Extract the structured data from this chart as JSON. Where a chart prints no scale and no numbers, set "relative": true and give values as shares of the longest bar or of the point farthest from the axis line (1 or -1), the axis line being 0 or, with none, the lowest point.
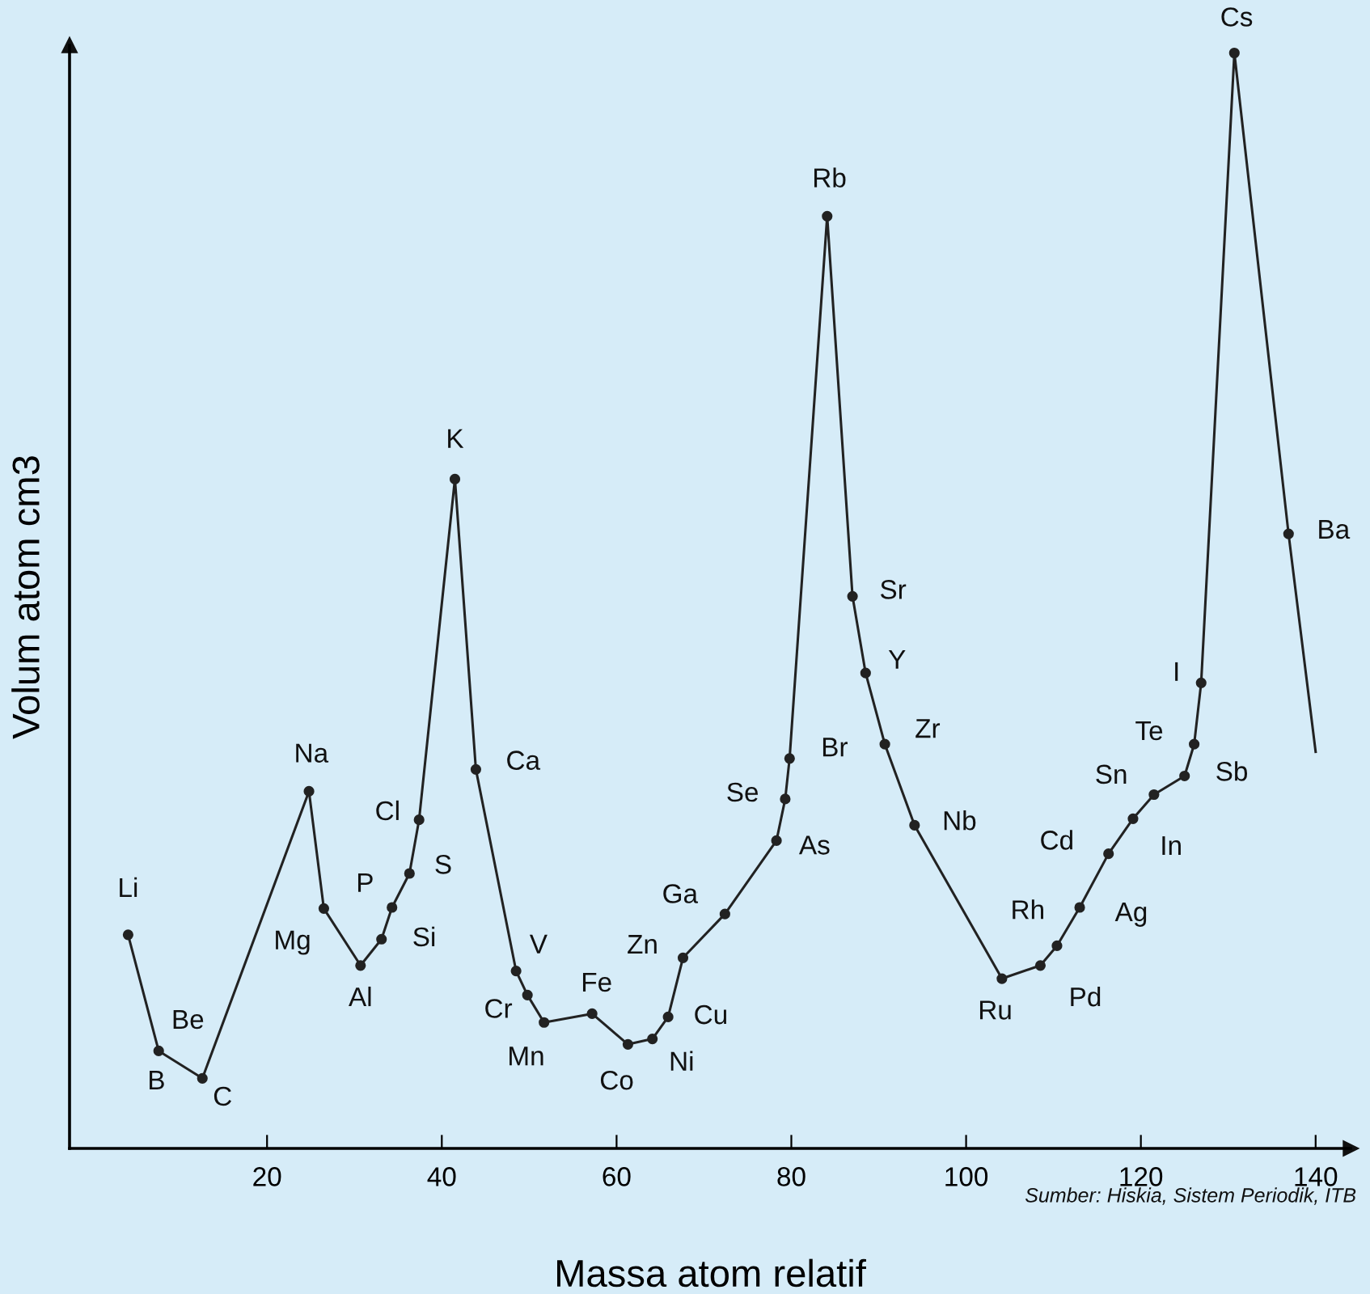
{
  "chart_data": {
    "type": "line",
    "relative": true,
    "xlabel": "Massa atom relatif",
    "ylabel": "Volum atom cm3",
    "xlim": [
      -2.6,
      144
    ],
    "xticks": [
      20,
      40,
      60,
      80,
      100,
      120,
      140
    ],
    "grid": false,
    "legend": false,
    "series": [
      {
        "color": "#222222",
        "marker": "none",
        "x": [
          4.1,
          7.6,
          12.6,
          24.8,
          26.5,
          30.7,
          33.1,
          34.3,
          36.3,
          37.4,
          41.5,
          43.9,
          48.5,
          49.8,
          51.7,
          57.2,
          61.3,
          64.1,
          65.9,
          67.6,
          72.4,
          78.3,
          79.3,
          79.8,
          84.1,
          87.0,
          88.5,
          90.7,
          94.1,
          104.1,
          108.5,
          110.4,
          113.0,
          116.3,
          119.1,
          121.5,
          125.0,
          126.1,
          126.9,
          130.7,
          136.9,
          140.0
        ],
        "values": [
          0.195,
          0.089,
          0.064,
          0.326,
          0.219,
          0.167,
          0.191,
          0.22,
          0.251,
          0.3,
          0.611,
          0.346,
          0.162,
          0.14,
          0.115,
          0.123,
          0.095,
          0.1,
          0.12,
          0.174,
          0.214,
          0.281,
          0.319,
          0.356,
          0.851,
          0.504,
          0.434,
          0.369,
          0.295,
          0.155,
          0.167,
          0.185,
          0.22,
          0.269,
          0.301,
          0.323,
          0.34,
          0.369,
          0.425,
          1.0,
          0.561,
          0.362
        ]
      },
      {
        "type": "scatter",
        "color": "#222222",
        "marker": "circle",
        "x": [
          4.1,
          7.6,
          12.6,
          24.8,
          26.5,
          30.7,
          33.1,
          34.3,
          36.3,
          37.4,
          41.5,
          43.9,
          48.5,
          49.8,
          51.7,
          57.2,
          61.3,
          64.1,
          65.9,
          67.6,
          72.4,
          78.3,
          79.3,
          79.8,
          84.1,
          87.0,
          88.5,
          90.7,
          94.1,
          104.1,
          108.5,
          110.4,
          113.0,
          116.3,
          119.1,
          121.5,
          125.0,
          126.1,
          126.9,
          130.7,
          136.9
        ],
        "values": [
          0.195,
          0.089,
          0.064,
          0.326,
          0.219,
          0.167,
          0.191,
          0.22,
          0.251,
          0.3,
          0.611,
          0.346,
          0.162,
          0.14,
          0.115,
          0.123,
          0.095,
          0.1,
          0.12,
          0.174,
          0.214,
          0.281,
          0.319,
          0.356,
          0.851,
          0.504,
          0.434,
          0.369,
          0.295,
          0.155,
          0.167,
          0.185,
          0.22,
          0.269,
          0.301,
          0.323,
          0.34,
          0.369,
          0.425,
          1.0,
          0.561
        ]
      }
    ],
    "annotations": [
      {
        "text": "Li",
        "x": 4.1,
        "y": 0.195
      },
      {
        "text": "Be",
        "x": 7.6,
        "y": 0.089
      },
      {
        "text": "B",
        "x": 7.6,
        "y": 0.089
      },
      {
        "text": "C",
        "x": 12.6,
        "y": 0.064
      },
      {
        "text": "Na",
        "x": 24.8,
        "y": 0.326
      },
      {
        "text": "Mg",
        "x": 26.5,
        "y": 0.219
      },
      {
        "text": "Al",
        "x": 30.7,
        "y": 0.167
      },
      {
        "text": "Si",
        "x": 33.1,
        "y": 0.191
      },
      {
        "text": "P",
        "x": 34.3,
        "y": 0.22
      },
      {
        "text": "S",
        "x": 36.3,
        "y": 0.251
      },
      {
        "text": "Cl",
        "x": 37.4,
        "y": 0.3
      },
      {
        "text": "K",
        "x": 41.5,
        "y": 0.611
      },
      {
        "text": "Ca",
        "x": 43.9,
        "y": 0.346
      },
      {
        "text": "V",
        "x": 48.5,
        "y": 0.162
      },
      {
        "text": "Cr",
        "x": 49.8,
        "y": 0.14
      },
      {
        "text": "Mn",
        "x": 51.7,
        "y": 0.115
      },
      {
        "text": "Fe",
        "x": 57.2,
        "y": 0.123
      },
      {
        "text": "Co",
        "x": 61.3,
        "y": 0.095
      },
      {
        "text": "Ni",
        "x": 64.1,
        "y": 0.1
      },
      {
        "text": "Cu",
        "x": 65.9,
        "y": 0.12
      },
      {
        "text": "Zn",
        "x": 67.6,
        "y": 0.174
      },
      {
        "text": "Ga",
        "x": 72.4,
        "y": 0.214
      },
      {
        "text": "As",
        "x": 78.3,
        "y": 0.281
      },
      {
        "text": "Se",
        "x": 79.3,
        "y": 0.319
      },
      {
        "text": "Br",
        "x": 79.8,
        "y": 0.356
      },
      {
        "text": "Rb",
        "x": 84.1,
        "y": 0.851
      },
      {
        "text": "Sr",
        "x": 87.0,
        "y": 0.504
      },
      {
        "text": "Y",
        "x": 88.5,
        "y": 0.434
      },
      {
        "text": "Zr",
        "x": 90.7,
        "y": 0.369
      },
      {
        "text": "Nb",
        "x": 94.1,
        "y": 0.295
      },
      {
        "text": "Ru",
        "x": 104.1,
        "y": 0.155
      },
      {
        "text": "Pd",
        "x": 108.5,
        "y": 0.167
      },
      {
        "text": "Rh",
        "x": 110.4,
        "y": 0.185
      },
      {
        "text": "Ag",
        "x": 113.0,
        "y": 0.22
      },
      {
        "text": "Cd",
        "x": 116.3,
        "y": 0.269
      },
      {
        "text": "In",
        "x": 119.1,
        "y": 0.301
      },
      {
        "text": "Sn",
        "x": 121.5,
        "y": 0.323
      },
      {
        "text": "Sb",
        "x": 125.0,
        "y": 0.34
      },
      {
        "text": "Te",
        "x": 126.1,
        "y": 0.369
      },
      {
        "text": "I",
        "x": 126.9,
        "y": 0.425
      },
      {
        "text": "Cs",
        "x": 130.7,
        "y": 1.0
      },
      {
        "text": "Ba",
        "x": 136.9,
        "y": 0.561
      },
      "Sumber: Hiskia, Sistem Periodik, ITB"
    ]
  }
}
